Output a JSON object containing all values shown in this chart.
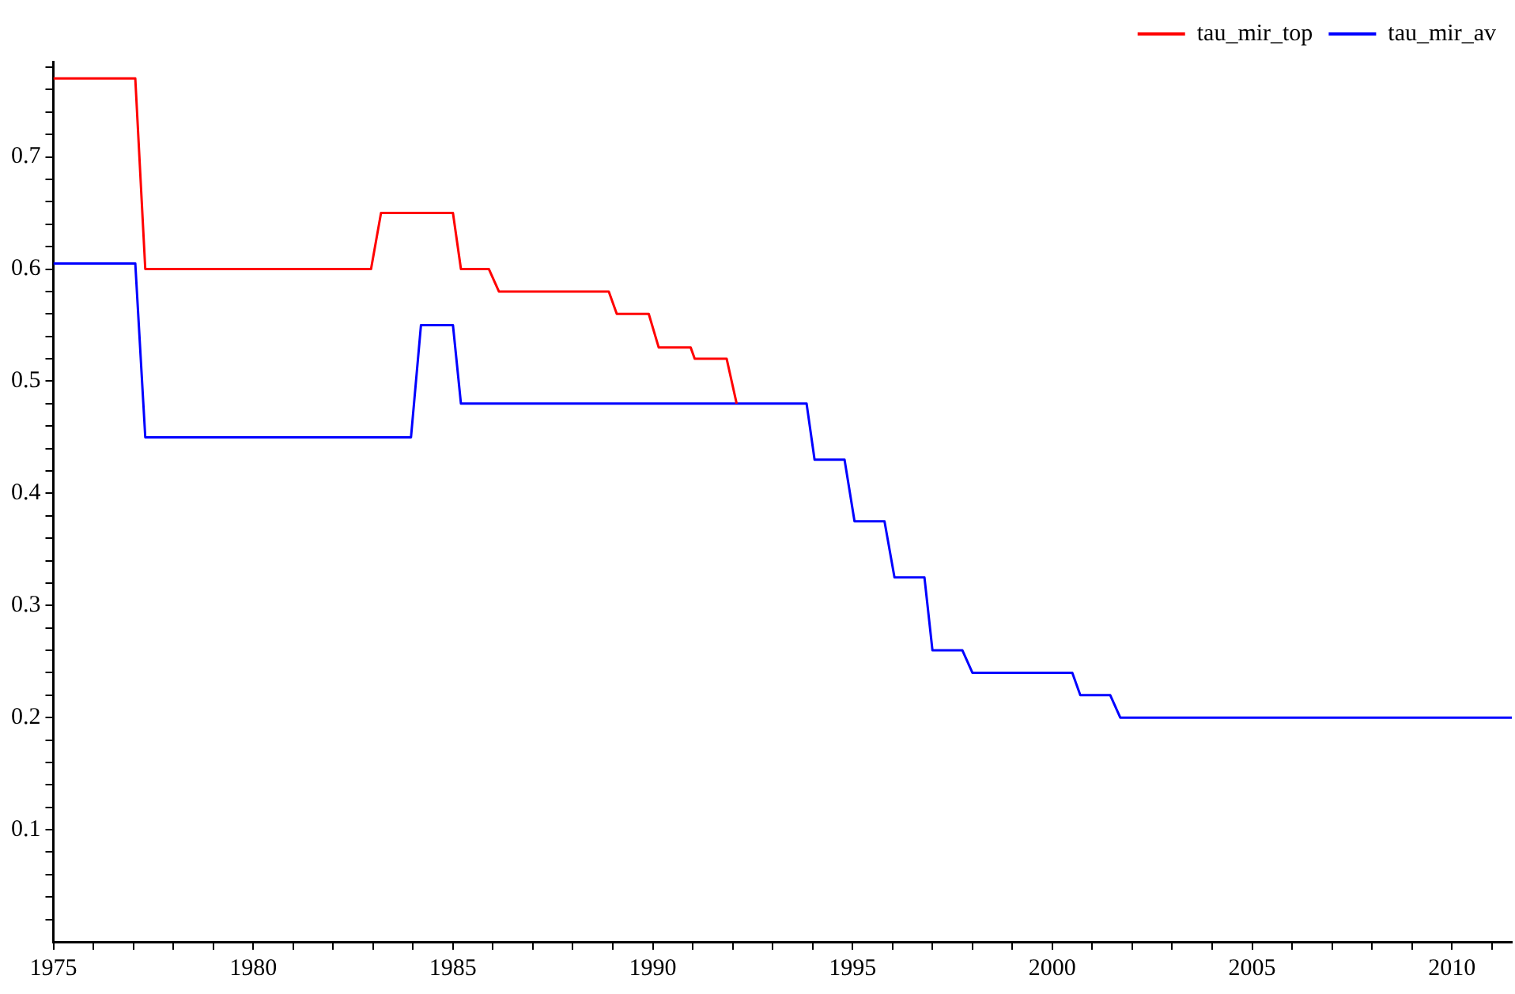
{
  "chart_data": {
    "type": "line",
    "xlim": [
      1975,
      2011.5
    ],
    "ylim": [
      0,
      0.785
    ],
    "xticks": [
      1975,
      {
        "value": 1976,
        "label": null
      },
      {
        "value": 1977,
        "label": null
      },
      {
        "value": 1978,
        "label": null
      },
      {
        "value": 1979,
        "label": null
      },
      1980,
      {
        "value": 1981,
        "label": null
      },
      {
        "value": 1982,
        "label": null
      },
      {
        "value": 1983,
        "label": null
      },
      {
        "value": 1984,
        "label": null
      },
      1985,
      {
        "value": 1986,
        "label": null
      },
      {
        "value": 1987,
        "label": null
      },
      {
        "value": 1988,
        "label": null
      },
      {
        "value": 1989,
        "label": null
      },
      1990,
      {
        "value": 1991,
        "label": null
      },
      {
        "value": 1992,
        "label": null
      },
      {
        "value": 1993,
        "label": null
      },
      {
        "value": 1994,
        "label": null
      },
      1995,
      {
        "value": 1996,
        "label": null
      },
      {
        "value": 1997,
        "label": null
      },
      {
        "value": 1998,
        "label": null
      },
      {
        "value": 1999,
        "label": null
      },
      2000,
      {
        "value": 2001,
        "label": null
      },
      {
        "value": 2002,
        "label": null
      },
      {
        "value": 2003,
        "label": null
      },
      {
        "value": 2004,
        "label": null
      },
      2005,
      {
        "value": 2006,
        "label": null
      },
      {
        "value": 2007,
        "label": null
      },
      {
        "value": 2008,
        "label": null
      },
      {
        "value": 2009,
        "label": null
      },
      2010,
      {
        "value": 2011,
        "label": null
      }
    ],
    "yticks": [
      {
        "value": 0.02,
        "label": null
      },
      {
        "value": 0.04,
        "label": null
      },
      {
        "value": 0.06,
        "label": null
      },
      {
        "value": 0.08,
        "label": null
      },
      0.1,
      {
        "value": 0.12,
        "label": null
      },
      {
        "value": 0.14,
        "label": null
      },
      {
        "value": 0.16,
        "label": null
      },
      {
        "value": 0.18,
        "label": null
      },
      0.2,
      {
        "value": 0.22,
        "label": null
      },
      {
        "value": 0.24,
        "label": null
      },
      {
        "value": 0.26,
        "label": null
      },
      {
        "value": 0.28,
        "label": null
      },
      0.3,
      {
        "value": 0.32,
        "label": null
      },
      {
        "value": 0.34,
        "label": null
      },
      {
        "value": 0.36,
        "label": null
      },
      {
        "value": 0.38,
        "label": null
      },
      0.4,
      {
        "value": 0.42,
        "label": null
      },
      {
        "value": 0.44,
        "label": null
      },
      {
        "value": 0.46,
        "label": null
      },
      {
        "value": 0.48,
        "label": null
      },
      0.5,
      {
        "value": 0.52,
        "label": null
      },
      {
        "value": 0.54,
        "label": null
      },
      {
        "value": 0.56,
        "label": null
      },
      {
        "value": 0.58,
        "label": null
      },
      0.6,
      {
        "value": 0.62,
        "label": null
      },
      {
        "value": 0.64,
        "label": null
      },
      {
        "value": 0.66,
        "label": null
      },
      {
        "value": 0.68,
        "label": null
      },
      0.7,
      {
        "value": 0.72,
        "label": null
      },
      {
        "value": 0.74,
        "label": null
      },
      {
        "value": 0.76,
        "label": null
      },
      {
        "value": 0.78,
        "label": null
      }
    ],
    "grid": false,
    "legend": "top right",
    "marker": "none",
    "line_style": "solid",
    "series": [
      {
        "name": "tau_mir_top",
        "color": "#ff0000",
        "x": [
          1975,
          1977.05,
          1977.3,
          1982.95,
          1983.2,
          1985.0,
          1985.2,
          1985.9,
          1986.15,
          1988.9,
          1989.1,
          1989.9,
          1990.15,
          1990.95,
          1991.05,
          1991.85,
          1992.1
        ],
        "values": [
          0.77,
          0.77,
          0.6,
          0.6,
          0.65,
          0.65,
          0.6,
          0.6,
          0.58,
          0.58,
          0.56,
          0.56,
          0.53,
          0.53,
          0.52,
          0.52,
          0.48
        ]
      },
      {
        "name": "tau_mir_av",
        "color": "#0000ff",
        "x": [
          1975,
          1977.05,
          1977.3,
          1983.95,
          1984.2,
          1985.0,
          1985.2,
          1993.85,
          1994.05,
          1994.8,
          1995.05,
          1995.8,
          1996.05,
          1996.8,
          1997.0,
          1997.75,
          1998.0,
          2000.5,
          2000.7,
          2001.45,
          2001.7,
          2011.5
        ],
        "values": [
          0.605,
          0.605,
          0.45,
          0.45,
          0.55,
          0.55,
          0.48,
          0.48,
          0.43,
          0.43,
          0.375,
          0.375,
          0.325,
          0.325,
          0.26,
          0.26,
          0.24,
          0.24,
          0.22,
          0.22,
          0.2,
          0.2
        ]
      }
    ]
  }
}
